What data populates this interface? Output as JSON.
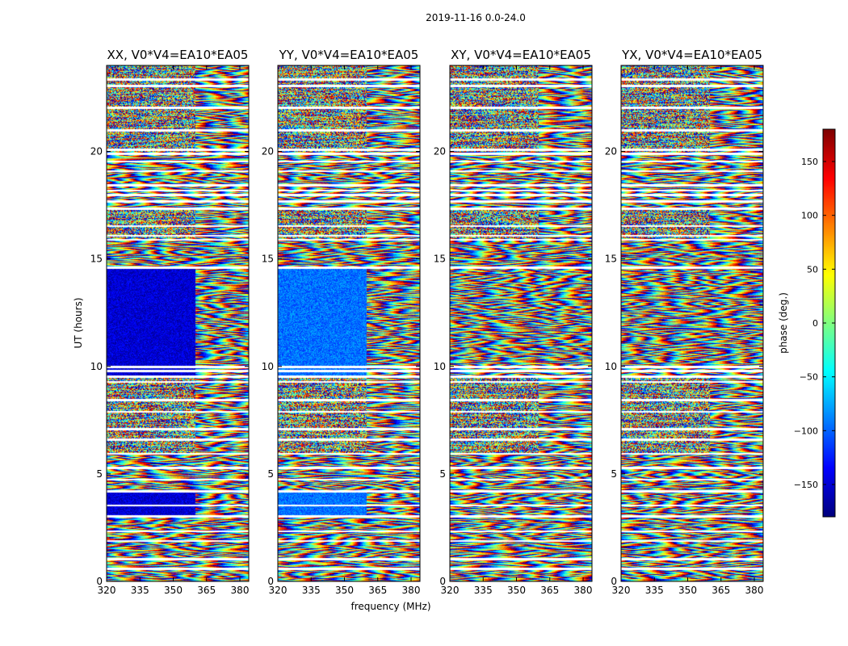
{
  "figure": {
    "suptitle": "2019-11-16 0.0-24.0"
  },
  "colors": {
    "colormap": "jet",
    "flagged": "#ffffff",
    "axes": "#000000"
  },
  "chart_data": [
    {
      "type": "heatmap",
      "title": "XX, V0*V4=EA10*EA05",
      "xlabel": "",
      "ylabel": "UT (hours)",
      "xlim": [
        320,
        384
      ],
      "ylim": [
        0,
        24
      ],
      "xticks": [
        "320",
        "335",
        "350",
        "365",
        "380"
      ],
      "yticks": [
        "0",
        "5",
        "10",
        "15",
        "20"
      ],
      "value": "phase (deg.)",
      "clim": [
        -180,
        180
      ]
    },
    {
      "type": "heatmap",
      "title": "YY, V0*V4=EA10*EA05",
      "xlabel": "frequency (MHz)",
      "ylabel": "",
      "xlim": [
        320,
        384
      ],
      "ylim": [
        0,
        24
      ],
      "xticks": [
        "320",
        "335",
        "350",
        "365",
        "380"
      ],
      "yticks": [
        "0",
        "5",
        "10",
        "15",
        "20"
      ],
      "value": "phase (deg.)",
      "clim": [
        -180,
        180
      ]
    },
    {
      "type": "heatmap",
      "title": "XY, V0*V4=EA10*EA05",
      "xlabel": "",
      "ylabel": "",
      "xlim": [
        320,
        384
      ],
      "ylim": [
        0,
        24
      ],
      "xticks": [
        "320",
        "335",
        "350",
        "365",
        "380"
      ],
      "yticks": [
        "0",
        "5",
        "10",
        "15",
        "20"
      ],
      "value": "phase (deg.)",
      "clim": [
        -180,
        180
      ]
    },
    {
      "type": "heatmap",
      "title": "YX, V0*V4=EA10*EA05",
      "xlabel": "",
      "ylabel": "",
      "xlim": [
        320,
        384
      ],
      "ylim": [
        0,
        24
      ],
      "xticks": [
        "320",
        "335",
        "350",
        "365",
        "380"
      ],
      "yticks": [
        "0",
        "5",
        "10",
        "15",
        "20"
      ],
      "value": "phase (deg.)",
      "clim": [
        -180,
        180
      ]
    }
  ],
  "colorbar": {
    "label": "phase (deg.)",
    "range": [
      -180,
      180
    ],
    "ticks": [
      "150",
      "100",
      "50",
      "0",
      "−50",
      "−100",
      "−150"
    ],
    "tick_values": [
      150,
      100,
      50,
      0,
      -50,
      -100,
      -150
    ]
  },
  "flagged_hours": [
    0.6,
    1.05,
    1.9,
    2.35,
    3.05,
    3.55,
    4.2,
    4.75,
    5.3,
    5.95,
    6.6,
    7.1,
    7.9,
    8.45,
    9.3,
    9.55,
    9.8,
    10.0,
    14.6,
    15.9,
    16.1,
    16.55,
    17.35,
    17.7,
    18.0,
    18.2,
    18.45,
    19.1,
    19.55,
    19.9,
    20.1,
    21.0,
    22.05,
    23.05,
    23.35
  ],
  "bands": [
    {
      "y0": 0,
      "y1": 3.0,
      "kind": "fringe"
    },
    {
      "y0": 3.0,
      "y1": 4.2,
      "kind": "flat"
    },
    {
      "y0": 4.2,
      "y1": 6.0,
      "kind": "fringe"
    },
    {
      "y0": 6.0,
      "y1": 9.5,
      "kind": "noisy"
    },
    {
      "y0": 9.5,
      "y1": 14.6,
      "kind": "flat"
    },
    {
      "y0": 14.6,
      "y1": 16.0,
      "kind": "fringe"
    },
    {
      "y0": 16.0,
      "y1": 17.4,
      "kind": "noisy"
    },
    {
      "y0": 17.4,
      "y1": 20.0,
      "kind": "fringe"
    },
    {
      "y0": 20.0,
      "y1": 24.0,
      "kind": "noisy"
    }
  ],
  "panel_phase_offset_deg": [
    -150,
    -95,
    0,
    0
  ]
}
